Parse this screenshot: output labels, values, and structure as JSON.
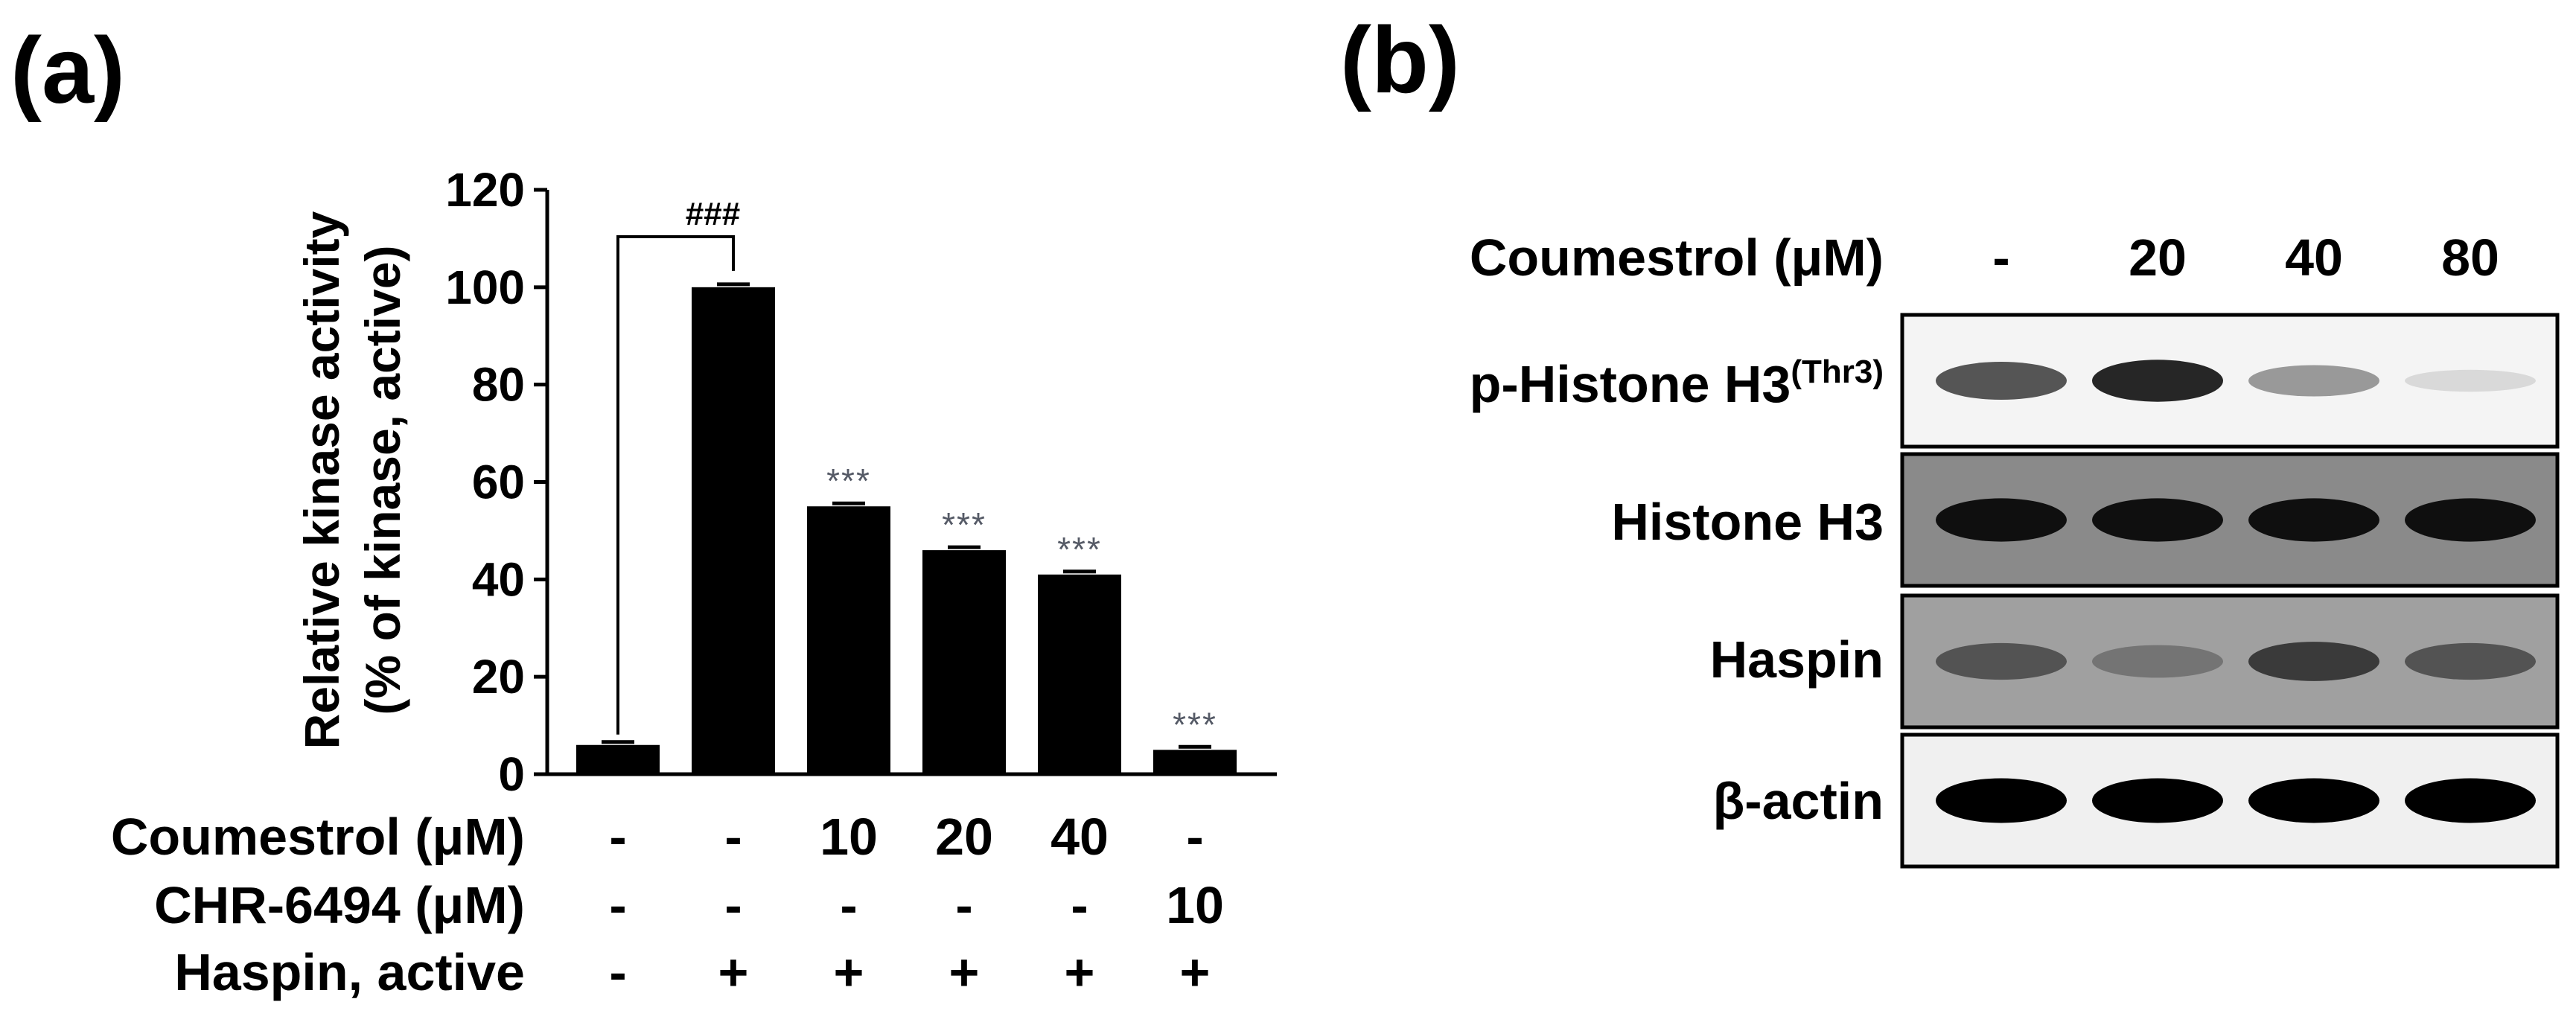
{
  "panels": {
    "a_label": "(a)",
    "b_label": "(b)"
  },
  "chart_data": {
    "type": "bar",
    "ylabel_line1": "Relative kinase activity",
    "ylabel_line2": "(% of kinase, active)",
    "ylim": [
      0,
      120
    ],
    "yticks": [
      "0",
      "20",
      "40",
      "60",
      "80",
      "100",
      "120"
    ],
    "values": [
      6,
      100,
      55,
      46,
      41,
      5
    ],
    "significance": [
      "",
      "",
      "***",
      "***",
      "***",
      "***"
    ],
    "comparison_bracket": {
      "label": "###",
      "from": 0,
      "to": 1
    },
    "condition_rows": [
      {
        "label": "Coumestrol (μM)",
        "values": [
          "-",
          "-",
          "10",
          "20",
          "40",
          "-"
        ]
      },
      {
        "label": "CHR-6494 (μM)",
        "values": [
          "-",
          "-",
          "-",
          "-",
          "-",
          "10"
        ]
      },
      {
        "label": "Haspin, active",
        "values": [
          "-",
          "+",
          "+",
          "+",
          "+",
          "+"
        ]
      }
    ],
    "colors": {
      "bar": "#000000",
      "significance": "#555a66"
    }
  },
  "blot": {
    "header_label": "Coumestrol (μM)",
    "lanes": [
      "-",
      "20",
      "40",
      "80"
    ],
    "rows": [
      {
        "label": "p-Histone H3",
        "superscript": "(Thr3)",
        "background": "#f4f4f4",
        "intensities": [
          0.75,
          0.9,
          0.5,
          0.15
        ]
      },
      {
        "label": "Histone H3",
        "superscript": "",
        "background": "#8a8a8a",
        "intensities": [
          0.95,
          0.95,
          0.95,
          0.95
        ]
      },
      {
        "label": "Haspin",
        "superscript": "",
        "background": "#a0a0a0",
        "intensities": [
          0.7,
          0.55,
          0.8,
          0.7
        ]
      },
      {
        "label": "β-actin",
        "superscript": "",
        "background": "#f0f0f0",
        "intensities": [
          1.0,
          1.0,
          1.0,
          1.0
        ]
      }
    ]
  }
}
